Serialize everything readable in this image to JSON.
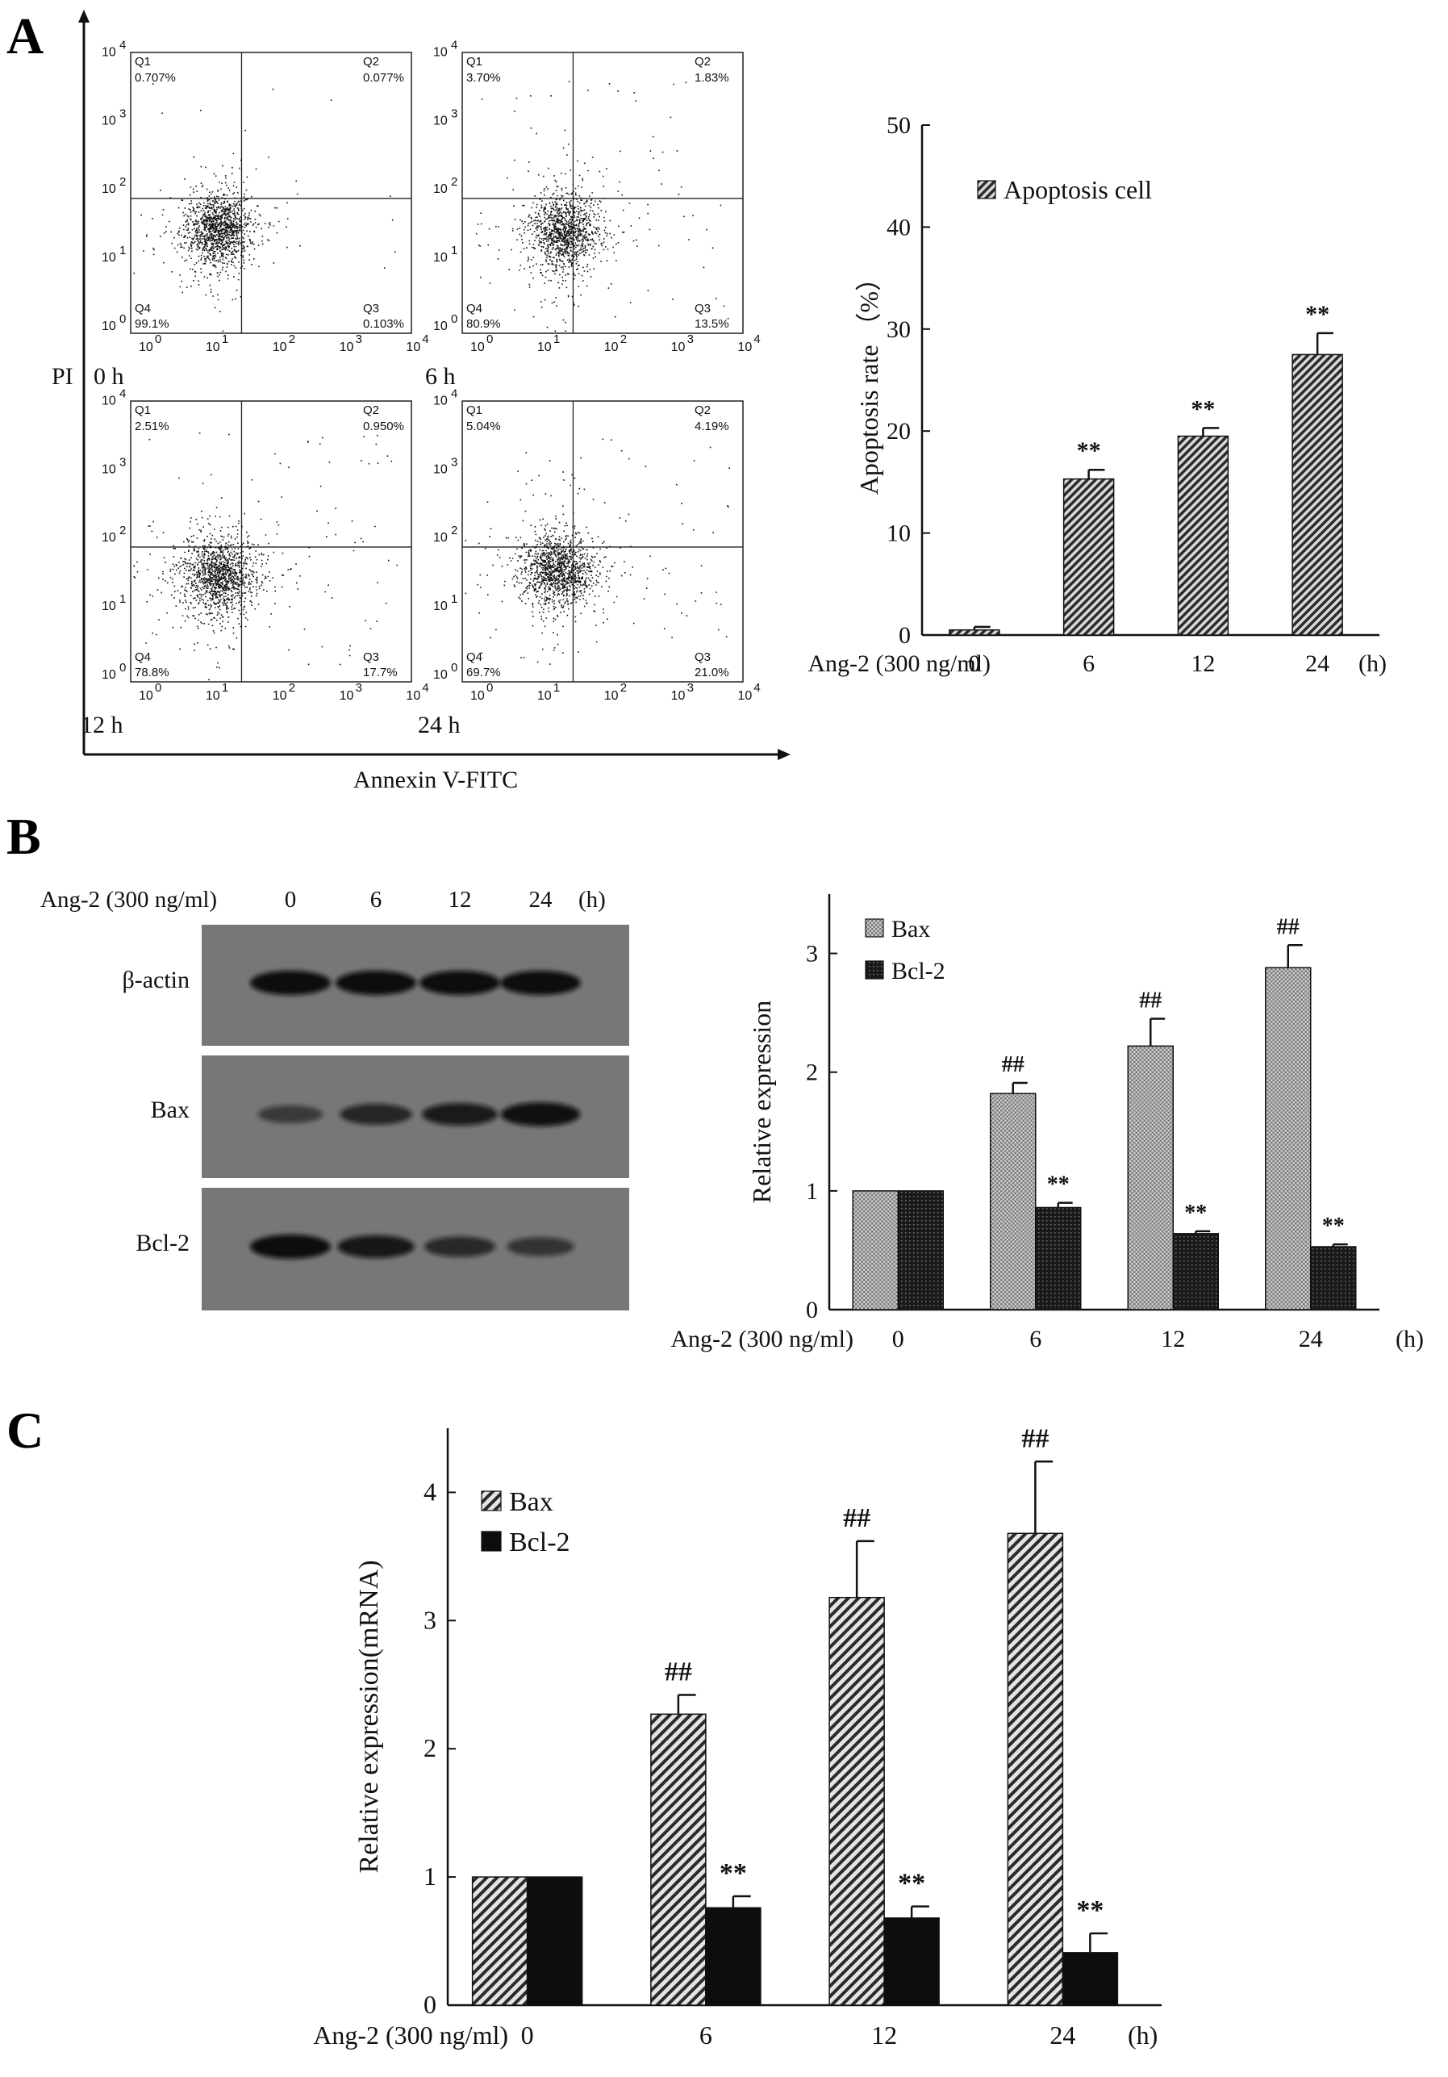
{
  "panels": {
    "a": "A",
    "b": "B",
    "c": "C"
  },
  "flow": {
    "ylabel": "PI",
    "xlabel": "Annexin V-FITC",
    "tick_labels": [
      "10",
      "10",
      "10",
      "10",
      "10"
    ],
    "tick_exponents": [
      "0",
      "1",
      "2",
      "3",
      "4"
    ],
    "quadrant_names": [
      "Q1",
      "Q2",
      "Q3",
      "Q4"
    ],
    "plots": [
      {
        "time": "0 h",
        "q1": "0.707%",
        "q2": "0.077%",
        "q3": "0.103%",
        "q4": "99.1%"
      },
      {
        "time": "6 h",
        "q1": "3.70%",
        "q2": "1.83%",
        "q3": "13.5%",
        "q4": "80.9%"
      },
      {
        "time": "12 h",
        "q1": "2.51%",
        "q2": "0.950%",
        "q3": "17.7%",
        "q4": "78.8%"
      },
      {
        "time": "24 h",
        "q1": "5.04%",
        "q2": "4.19%",
        "q3": "21.0%",
        "q4": "69.7%"
      }
    ]
  },
  "western": {
    "treatment_label": "Ang-2 (300 ng/ml)",
    "times": [
      "0",
      "6",
      "12",
      "24"
    ],
    "unit": "(h)",
    "bands": [
      {
        "label": "β-actin",
        "intensity": [
          1.0,
          1.0,
          1.0,
          1.0
        ]
      },
      {
        "label": "Bax",
        "intensity": [
          0.35,
          0.65,
          0.8,
          0.95
        ]
      },
      {
        "label": "Bcl-2",
        "intensity": [
          1.0,
          0.85,
          0.6,
          0.45
        ]
      }
    ]
  },
  "chart_data": [
    {
      "id": "A",
      "type": "bar",
      "ylabel": "Apoptosis rate （%）",
      "xlabel": "Ang-2 (300 ng/ml)",
      "unit": "(h)",
      "categories": [
        "0",
        "6",
        "12",
        "24"
      ],
      "ylim": [
        0,
        50
      ],
      "yticks": [
        0,
        10,
        20,
        30,
        40,
        50
      ],
      "legend_position": "top-left",
      "series": [
        {
          "name": "Apoptosis cell",
          "values": [
            0.5,
            15.3,
            19.5,
            27.5
          ],
          "errors": [
            0.3,
            0.9,
            0.8,
            2.1
          ],
          "marks": [
            "",
            "**",
            "**",
            "**"
          ]
        }
      ]
    },
    {
      "id": "B",
      "type": "bar",
      "ylabel": "Relative expression",
      "xlabel": "Ang-2 (300 ng/ml)",
      "unit": "(h)",
      "categories": [
        "0",
        "6",
        "12",
        "24"
      ],
      "ylim": [
        0,
        3.5
      ],
      "yticks": [
        0,
        1,
        2,
        3
      ],
      "legend_position": "top-left",
      "series": [
        {
          "name": "Bax",
          "values": [
            1.0,
            1.82,
            2.22,
            2.88
          ],
          "errors": [
            0,
            0.09,
            0.23,
            0.19
          ],
          "marks": [
            "",
            "##",
            "##",
            "##"
          ]
        },
        {
          "name": "Bcl-2",
          "values": [
            1.0,
            0.86,
            0.64,
            0.53
          ],
          "errors": [
            0,
            0.04,
            0.02,
            0.02
          ],
          "marks": [
            "",
            "**",
            "**",
            "**"
          ]
        }
      ]
    },
    {
      "id": "C",
      "type": "bar",
      "ylabel": "Relative expression(mRNA)",
      "xlabel": "Ang-2 (300 ng/ml)",
      "unit": "(h)",
      "categories": [
        "0",
        "6",
        "12",
        "24"
      ],
      "ylim": [
        0,
        4.5
      ],
      "yticks": [
        0,
        1,
        2,
        3,
        4
      ],
      "legend_position": "top-left",
      "series": [
        {
          "name": "Bax",
          "values": [
            1.0,
            2.27,
            3.18,
            3.68
          ],
          "errors": [
            0,
            0.15,
            0.44,
            0.56
          ],
          "marks": [
            "",
            "##",
            "##",
            "##"
          ]
        },
        {
          "name": "Bcl-2",
          "values": [
            1.0,
            0.76,
            0.68,
            0.41
          ],
          "errors": [
            0,
            0.09,
            0.09,
            0.15
          ],
          "marks": [
            "",
            "**",
            "**",
            "**"
          ]
        }
      ]
    }
  ]
}
